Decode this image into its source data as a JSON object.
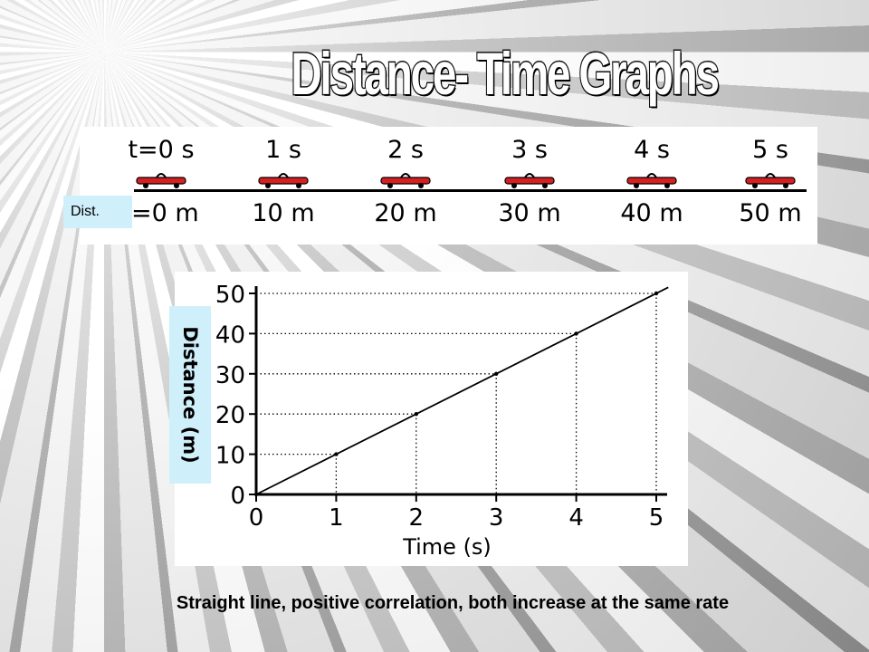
{
  "slide": {
    "title": "Distance- Time Graphs",
    "caption": "Straight line, positive correlation, both increase at the same rate",
    "dist_label": "Dist."
  },
  "strip": {
    "times": [
      "t=0 s",
      "1 s",
      "2 s",
      "3 s",
      "4 s",
      "5 s"
    ],
    "distances": [
      ".=0 m",
      "10 m",
      "20 m",
      "30 m",
      "40 m",
      "50 m"
    ],
    "car_color": "#d42020"
  },
  "chart_data": {
    "type": "line",
    "xlabel": "Time (s)",
    "ylabel": "Distance (m)",
    "x": [
      0,
      1,
      2,
      3,
      4,
      5
    ],
    "series": [
      {
        "values": [
          0,
          10,
          20,
          30,
          40,
          50
        ]
      }
    ],
    "xlim": [
      0,
      5
    ],
    "ylim": [
      0,
      50
    ],
    "xticks": [
      "0",
      "1",
      "2",
      "3",
      "4",
      "5"
    ],
    "yticks": [
      "0",
      "10",
      "20",
      "30",
      "40",
      "50"
    ],
    "guide_lines": "dotted drop lines from each point to both axes",
    "grid": false,
    "line_extends_past": 5.15
  }
}
